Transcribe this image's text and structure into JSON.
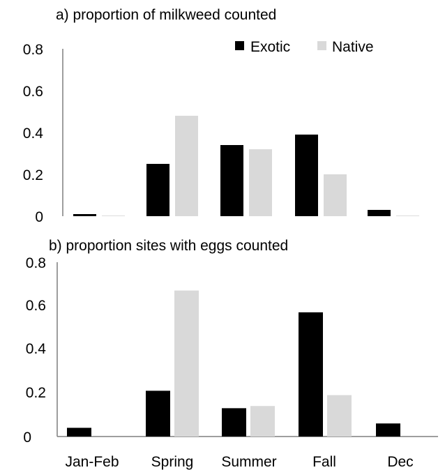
{
  "colors": {
    "exotic": "#000000",
    "native": "#d9d9d9",
    "axis": "#7f7f7f"
  },
  "legend": {
    "items": [
      {
        "label": "Exotic"
      },
      {
        "label": "Native"
      }
    ],
    "placement": "top-right"
  },
  "categories_labels": [
    "Jan-Feb",
    "Spring",
    "Summer",
    "Fall",
    "Dec"
  ],
  "panels": [
    {
      "title": "a) proportion of milkweed counted",
      "yticks": [
        "0",
        "0.2",
        "0.4",
        "0.6",
        "0.8"
      ]
    },
    {
      "title": "b) proportion sites with eggs counted",
      "yticks": [
        "0",
        "0.2",
        "0.4",
        "0.6",
        "0.8"
      ]
    }
  ],
  "chart_data": [
    {
      "type": "bar",
      "title": "a) proportion of milkweed counted",
      "categories": [
        "Jan-Feb",
        "Spring",
        "Summer",
        "Fall",
        "Dec"
      ],
      "series": [
        {
          "name": "Exotic",
          "values": [
            0.01,
            0.25,
            0.34,
            0.39,
            0.03
          ]
        },
        {
          "name": "Native",
          "values": [
            0.003,
            0.48,
            0.32,
            0.2,
            0.003
          ]
        }
      ],
      "ylim": [
        0,
        0.8
      ],
      "grid": false,
      "legend": "top-right"
    },
    {
      "type": "bar",
      "title": "b) proportion sites with eggs counted",
      "categories": [
        "Jan-Feb",
        "Spring",
        "Summer",
        "Fall",
        "Dec"
      ],
      "series": [
        {
          "name": "Exotic",
          "values": [
            0.04,
            0.21,
            0.13,
            0.57,
            0.06
          ]
        },
        {
          "name": "Native",
          "values": [
            0.0,
            0.67,
            0.14,
            0.19,
            0.0
          ]
        }
      ],
      "ylim": [
        0,
        0.8
      ],
      "grid": false
    }
  ]
}
